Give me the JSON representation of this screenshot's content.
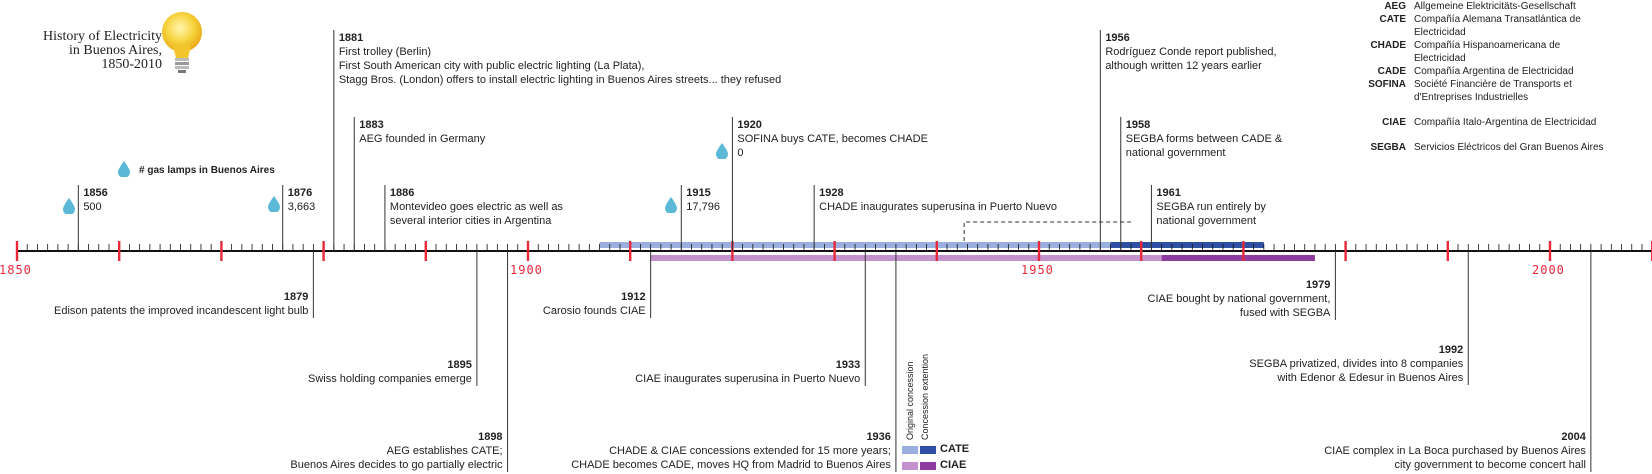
{
  "title": {
    "line1": "History of Electricity",
    "line2": "in Buenos Aires,",
    "line3": "1850-2010"
  },
  "gas_lamps": {
    "label": "# gas lamps in Buenos Aires",
    "entries": [
      {
        "year": "1856",
        "value": "500"
      },
      {
        "year": "1876",
        "value": "3,663"
      },
      {
        "year": "1915",
        "value": "17,796"
      },
      {
        "year": "1920",
        "value": "0"
      }
    ]
  },
  "axis": {
    "start": 1850,
    "end": 2010,
    "labels": [
      "1850",
      "1900",
      "1950",
      "2000"
    ]
  },
  "events_above": [
    {
      "year": "1856",
      "lines": [
        "500"
      ]
    },
    {
      "year": "1876",
      "lines": [
        "3,663"
      ]
    },
    {
      "year": "1881",
      "lines": [
        "First trolley (Berlin)",
        "First South American city with public electric lighting (La Plata),",
        "Stagg Bros. (London) offers to install electric lighting in Buenos Aires streets... they refused"
      ]
    },
    {
      "year": "1883",
      "lines": [
        "AEG founded in Germany"
      ]
    },
    {
      "year": "1886",
      "lines": [
        "Montevideo goes electric as well as",
        "several interior cities in Argentina"
      ]
    },
    {
      "year": "1915",
      "lines": [
        "17,796"
      ]
    },
    {
      "year": "1920",
      "lines": [
        "SOFINA buys CATE, becomes CHADE",
        "0"
      ]
    },
    {
      "year": "1928",
      "lines": [
        "CHADE inaugurates superusina in Puerto Nuevo"
      ]
    },
    {
      "year": "1956",
      "lines": [
        "Rodríguez Conde report published,",
        "although written 12 years earlier"
      ]
    },
    {
      "year": "1958",
      "lines": [
        "SEGBA forms between CADE &",
        "national government"
      ]
    },
    {
      "year": "1961",
      "lines": [
        "SEGBA run entirely by",
        "national government"
      ]
    }
  ],
  "events_below": [
    {
      "year": "1879",
      "lines": [
        "Edison patents the improved incandescent light bulb"
      ]
    },
    {
      "year": "1895",
      "lines": [
        "Swiss holding companies emerge"
      ]
    },
    {
      "year": "1898",
      "lines": [
        "AEG establishes CATE;",
        "Buenos Aires decides to go partially electric"
      ]
    },
    {
      "year": "1912",
      "lines": [
        "Carosio founds CIAE"
      ]
    },
    {
      "year": "1933",
      "lines": [
        "CIAE inaugurates superusina in Puerto Nuevo"
      ]
    },
    {
      "year": "1936",
      "lines": [
        "CHADE & CIAE concessions extended for 15 more years;",
        "CHADE becomes CADE, moves HQ from Madrid to Buenos Aires"
      ]
    },
    {
      "year": "1979",
      "lines": [
        "CIAE bought by national government,",
        "fused with SEGBA"
      ]
    },
    {
      "year": "1992",
      "lines": [
        "SEGBA privatized, divides into 8 companies",
        "with Edenor & Edesur in Buenos Aires"
      ]
    },
    {
      "year": "2004",
      "lines": [
        "CIAE complex in La Boca purchased by Buenos Aires",
        "city government to become concert hall"
      ]
    }
  ],
  "concessions": {
    "key_original": "Original concession",
    "key_extension": "Concession extention",
    "cate_label": "CATE",
    "ciae_label": "CIAE",
    "cate": {
      "original": [
        1907,
        1957
      ],
      "extension": [
        1957,
        1972
      ]
    },
    "ciae": {
      "original": [
        1912,
        1962
      ],
      "extension": [
        1962,
        1977
      ]
    },
    "colors": {
      "cate_light": "#9aafe0",
      "cate_dark": "#2f4fa3",
      "ciae_light": "#c391cc",
      "ciae_dark": "#8e3a9e"
    }
  },
  "legend": [
    {
      "abbr": "AEG",
      "name": "Allgemeine Elektricitäts-Gesellschaft"
    },
    {
      "abbr": "CATE",
      "name": "Compañía Alemana Transatlántica de Electricidad"
    },
    {
      "abbr": "CHADE",
      "name": "Compañía Hispanoamericana de Electricidad"
    },
    {
      "abbr": "CADE",
      "name": "Compañía Argentina de Electricidad"
    },
    {
      "abbr": "SOFINA",
      "name": "Société Financière de Transports et d'Entreprises Industrielles"
    },
    {
      "abbr": "CIAE",
      "name": "Compañía Italo-Argentina de Electricidad"
    },
    {
      "abbr": "SEGBA",
      "name": "Servicios Eléctricos del Gran Buenos Aires"
    }
  ],
  "colors": {
    "axis": "#111111",
    "major_tick": "#e8293a",
    "drop": "#5bb8d6",
    "line": "#333333"
  }
}
